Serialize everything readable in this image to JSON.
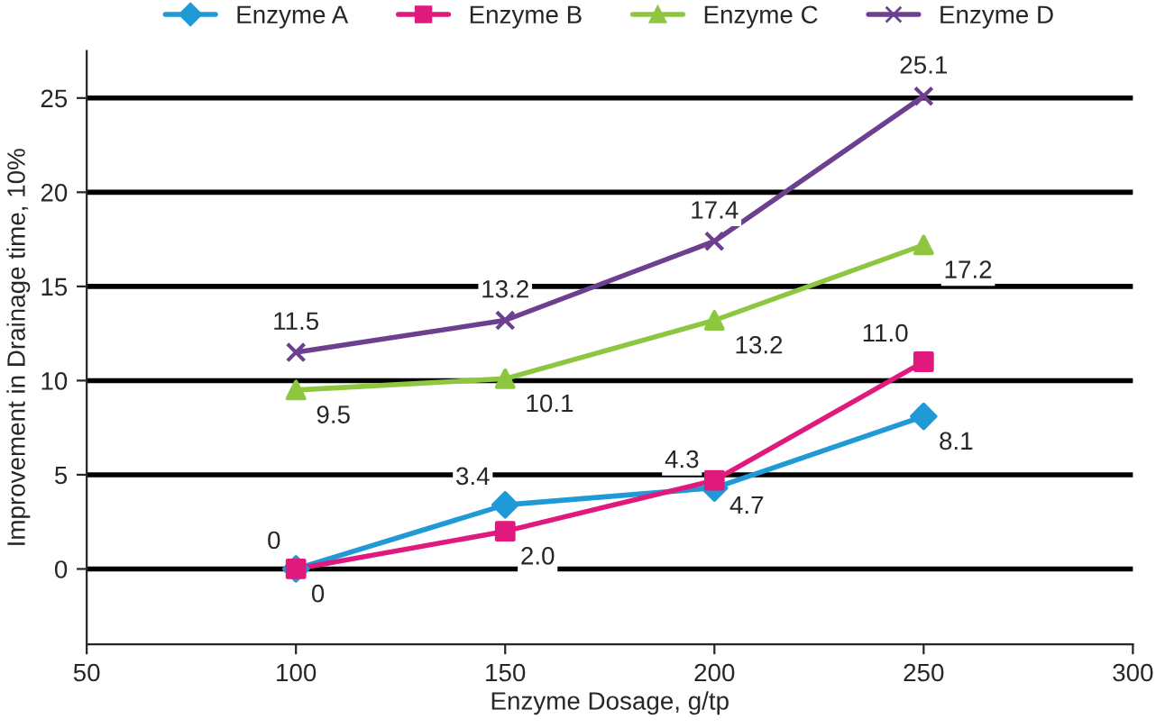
{
  "chart_data": {
    "type": "line",
    "xlabel": "Enzyme Dosage, g/tp",
    "ylabel": "Improvement in Drainage time, 10%",
    "x": [
      100,
      150,
      200,
      250
    ],
    "series": [
      {
        "name": "Enzyme A",
        "color": "#1f9ad6",
        "marker": "diamond",
        "values": [
          0,
          3.4,
          4.3,
          8.1
        ],
        "value_labels": [
          "0",
          "3.4",
          "4.3",
          "8.1"
        ]
      },
      {
        "name": "Enzyme B",
        "color": "#e0197d",
        "marker": "square",
        "values": [
          0,
          2.0,
          4.7,
          11.0
        ],
        "value_labels": [
          "0",
          "2.0",
          "4.7",
          "11.0"
        ]
      },
      {
        "name": "Enzyme C",
        "color": "#8dc63f",
        "marker": "triangle",
        "values": [
          9.5,
          10.1,
          13.2,
          17.2
        ],
        "value_labels": [
          "9.5",
          "10.1",
          "13.2",
          "17.2"
        ]
      },
      {
        "name": "Enzyme D",
        "color": "#6d3f8f",
        "marker": "cross",
        "values": [
          11.5,
          13.2,
          17.4,
          25.1
        ],
        "value_labels": [
          "11.5",
          "13.2",
          "17.4",
          "25.1"
        ]
      }
    ],
    "xlim": [
      50,
      300
    ],
    "xticks": [
      50,
      100,
      150,
      200,
      250,
      300
    ],
    "ylim": [
      -4,
      27.5
    ],
    "yticks": [
      0,
      5,
      10,
      15,
      20,
      25
    ],
    "grid": "y",
    "legend": "top",
    "line_style": "solid"
  }
}
